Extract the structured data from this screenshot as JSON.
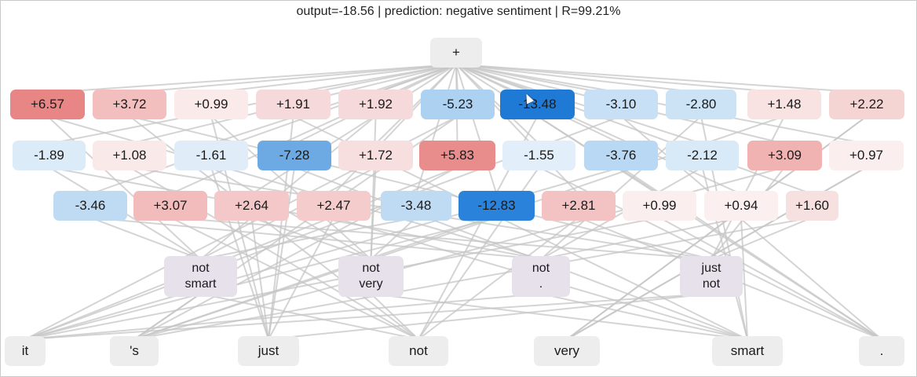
{
  "header": {
    "title": "output=-18.56 | prediction: negative sentiment | R=99.21%"
  },
  "root": {
    "label": "+"
  },
  "row1": [
    {
      "label": "+6.57",
      "color": "#e88585"
    },
    {
      "label": "+3.72",
      "color": "#f3bebe"
    },
    {
      "label": "+0.99",
      "color": "#faebea"
    },
    {
      "label": "+1.91",
      "color": "#f6dadb"
    },
    {
      "label": "+1.92",
      "color": "#f6dadb"
    },
    {
      "label": "-5.23",
      "color": "#acd1f1"
    },
    {
      "label": "-13.48",
      "color": "#1f7ad6"
    },
    {
      "label": "-3.10",
      "color": "#c7e0f6"
    },
    {
      "label": "-2.80",
      "color": "#cce3f6"
    },
    {
      "label": "+1.48",
      "color": "#f8e2e2"
    },
    {
      "label": "+2.22",
      "color": "#f5d4d4"
    }
  ],
  "row2": [
    {
      "label": "-1.89",
      "color": "#dcebf8"
    },
    {
      "label": "+1.08",
      "color": "#f9e9e9"
    },
    {
      "label": "-1.61",
      "color": "#e0edf8"
    },
    {
      "label": "-7.28",
      "color": "#6daae3"
    },
    {
      "label": "+1.72",
      "color": "#f7dfdf"
    },
    {
      "label": "+5.83",
      "color": "#e98c8c"
    },
    {
      "label": "-1.55",
      "color": "#e2eef9"
    },
    {
      "label": "-3.76",
      "color": "#b9d8f3"
    },
    {
      "label": "-2.12",
      "color": "#d8e9f7"
    },
    {
      "label": "+3.09",
      "color": "#f1b2b2"
    },
    {
      "label": "+0.97",
      "color": "#faeeee"
    }
  ],
  "row3": [
    {
      "label": "-3.46",
      "color": "#bfdaf3"
    },
    {
      "label": "+3.07",
      "color": "#f2bcbc"
    },
    {
      "label": "+2.64",
      "color": "#f4c8c8"
    },
    {
      "label": "+2.47",
      "color": "#f4cccc"
    },
    {
      "label": "-3.48",
      "color": "#bfdaf3"
    },
    {
      "label": "-12.83",
      "color": "#2a82da"
    },
    {
      "label": "+2.81",
      "color": "#f3c3c3"
    },
    {
      "label": "+0.99",
      "color": "#faeeee"
    },
    {
      "label": "+0.94",
      "color": "#fbefef"
    },
    {
      "label": "+1.60",
      "color": "#f7e0e0"
    }
  ],
  "phrases": [
    {
      "line1": "not",
      "line2": "smart"
    },
    {
      "line1": "not",
      "line2": "very"
    },
    {
      "line1": "not",
      "line2": "."
    },
    {
      "line1": "just",
      "line2": "not"
    }
  ],
  "tokens": [
    "it",
    "'s",
    "just",
    "not",
    "very",
    "smart",
    "."
  ]
}
